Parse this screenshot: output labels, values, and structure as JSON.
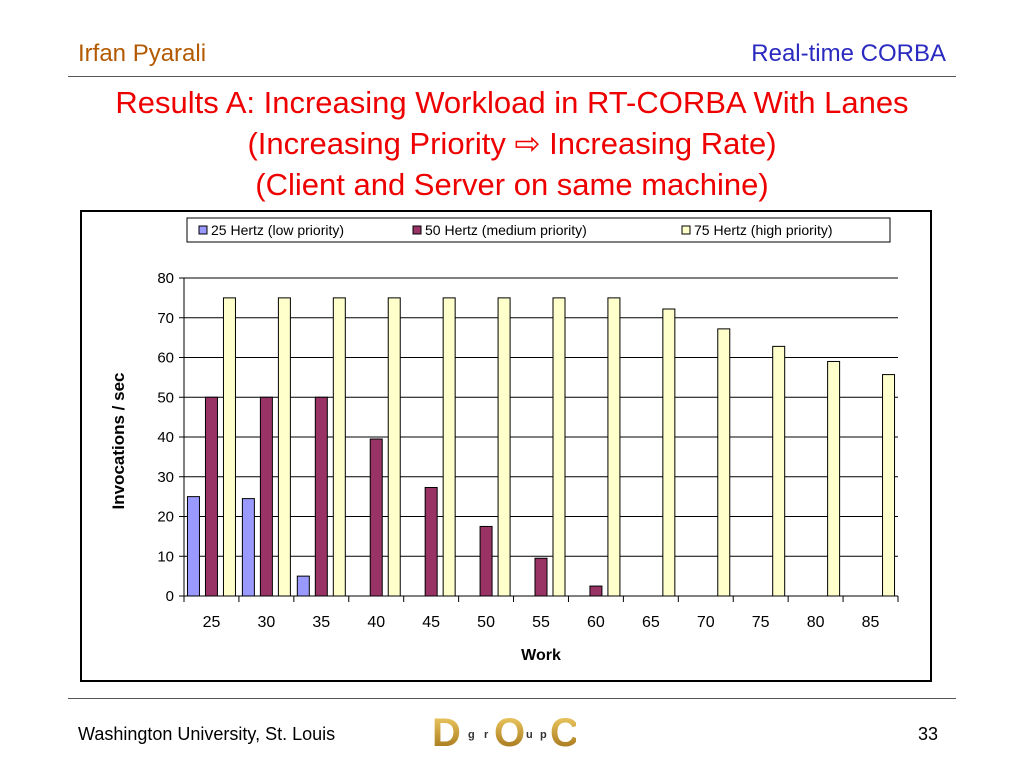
{
  "header": {
    "author": "Irfan Pyarali",
    "topic": "Real-time CORBA"
  },
  "title": {
    "line1": "Results A: Increasing Workload in RT-CORBA With Lanes",
    "line2": "(Increasing Priority ⇨ Increasing Rate)",
    "line3": "(Client and Server on same machine)"
  },
  "footer": {
    "institution": "Washington University, St. Louis",
    "page": "33"
  },
  "logo": {
    "letters": [
      "D",
      "g",
      "r",
      "O",
      "u",
      "p",
      "C"
    ]
  },
  "colors": {
    "title": "#ee0000",
    "author": "#b35900",
    "topic": "#2a2ac0"
  },
  "chart_data": {
    "type": "bar",
    "xlabel": "Work",
    "ylabel": "Invocations / sec",
    "ylim": [
      0,
      80
    ],
    "yticks": [
      0,
      10,
      20,
      30,
      40,
      50,
      60,
      70,
      80
    ],
    "grid": true,
    "legend_position": "top",
    "categories": [
      "25",
      "30",
      "35",
      "40",
      "45",
      "50",
      "55",
      "60",
      "65",
      "70",
      "75",
      "80",
      "85"
    ],
    "series": [
      {
        "name": "25 Hertz (low priority)",
        "color": "#9999ff",
        "values": [
          25,
          24.5,
          5,
          0,
          0,
          0,
          0,
          0,
          0,
          0,
          0,
          0,
          0
        ]
      },
      {
        "name": "50 Hertz (medium priority)",
        "color": "#993366",
        "values": [
          50,
          50,
          50,
          39.5,
          27.3,
          17.5,
          9.5,
          2.5,
          0,
          0,
          0,
          0,
          0
        ]
      },
      {
        "name": "75 Hertz (high priority)",
        "color": "#ffffcc",
        "values": [
          75,
          75,
          75,
          75,
          75,
          75,
          75,
          75,
          72.2,
          67.2,
          62.8,
          59,
          55.7
        ]
      }
    ]
  }
}
